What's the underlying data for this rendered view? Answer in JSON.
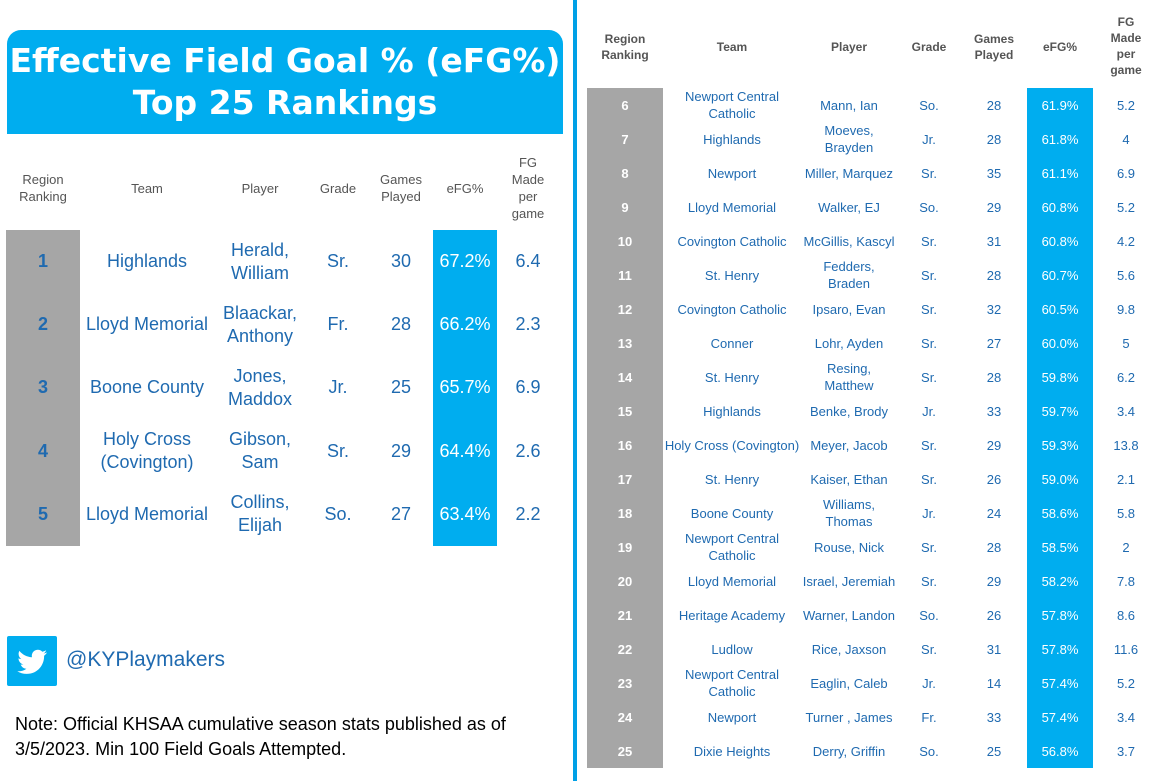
{
  "title": {
    "line1": "Effective Field Goal % (eFG%)",
    "line2": "Top 25 Rankings"
  },
  "headers": {
    "rank": "Region Ranking",
    "team": "Team",
    "player": "Player",
    "grade": "Grade",
    "games": "Games Played",
    "efg": "eFG%",
    "fgm": "FG Made per game"
  },
  "top5": [
    {
      "rank": "1",
      "team": "Highlands",
      "player": "Herald, William",
      "grade": "Sr.",
      "games": "30",
      "efg": "67.2%",
      "fgm": "6.4"
    },
    {
      "rank": "2",
      "team": "Lloyd Memorial",
      "player": "Blaackar, Anthony",
      "grade": "Fr.",
      "games": "28",
      "efg": "66.2%",
      "fgm": "2.3"
    },
    {
      "rank": "3",
      "team": "Boone County",
      "player": "Jones, Maddox",
      "grade": "Jr.",
      "games": "25",
      "efg": "65.7%",
      "fgm": "6.9"
    },
    {
      "rank": "4",
      "team": "Holy Cross (Covington)",
      "player": "Gibson, Sam",
      "grade": "Sr.",
      "games": "29",
      "efg": "64.4%",
      "fgm": "2.6"
    },
    {
      "rank": "5",
      "team": "Lloyd Memorial",
      "player": "Collins, Elijah",
      "grade": "So.",
      "games": "27",
      "efg": "63.4%",
      "fgm": "2.2"
    }
  ],
  "rest": [
    {
      "rank": "6",
      "team": "Newport Central Catholic",
      "player": "Mann, Ian",
      "grade": "So.",
      "games": "28",
      "efg": "61.9%",
      "fgm": "5.2"
    },
    {
      "rank": "7",
      "team": "Highlands",
      "player": "Moeves, Brayden",
      "grade": "Jr.",
      "games": "28",
      "efg": "61.8%",
      "fgm": "4"
    },
    {
      "rank": "8",
      "team": "Newport",
      "player": "Miller, Marquez",
      "grade": "Sr.",
      "games": "35",
      "efg": "61.1%",
      "fgm": "6.9"
    },
    {
      "rank": "9",
      "team": "Lloyd Memorial",
      "player": "Walker, EJ",
      "grade": "So.",
      "games": "29",
      "efg": "60.8%",
      "fgm": "5.2"
    },
    {
      "rank": "10",
      "team": "Covington Catholic",
      "player": "McGillis, Kascyl",
      "grade": "Sr.",
      "games": "31",
      "efg": "60.8%",
      "fgm": "4.2"
    },
    {
      "rank": "11",
      "team": "St. Henry",
      "player": "Fedders, Braden",
      "grade": "Sr.",
      "games": "28",
      "efg": "60.7%",
      "fgm": "5.6"
    },
    {
      "rank": "12",
      "team": "Covington Catholic",
      "player": "Ipsaro, Evan",
      "grade": "Sr.",
      "games": "32",
      "efg": "60.5%",
      "fgm": "9.8"
    },
    {
      "rank": "13",
      "team": "Conner",
      "player": "Lohr, Ayden",
      "grade": "Sr.",
      "games": "27",
      "efg": "60.0%",
      "fgm": "5"
    },
    {
      "rank": "14",
      "team": "St. Henry",
      "player": "Resing, Matthew",
      "grade": "Sr.",
      "games": "28",
      "efg": "59.8%",
      "fgm": "6.2"
    },
    {
      "rank": "15",
      "team": "Highlands",
      "player": "Benke, Brody",
      "grade": "Jr.",
      "games": "33",
      "efg": "59.7%",
      "fgm": "3.4"
    },
    {
      "rank": "16",
      "team": "Holy Cross (Covington)",
      "player": "Meyer, Jacob",
      "grade": "Sr.",
      "games": "29",
      "efg": "59.3%",
      "fgm": "13.8"
    },
    {
      "rank": "17",
      "team": "St. Henry",
      "player": "Kaiser, Ethan",
      "grade": "Sr.",
      "games": "26",
      "efg": "59.0%",
      "fgm": "2.1"
    },
    {
      "rank": "18",
      "team": "Boone County",
      "player": "Williams, Thomas",
      "grade": "Jr.",
      "games": "24",
      "efg": "58.6%",
      "fgm": "5.8"
    },
    {
      "rank": "19",
      "team": "Newport Central Catholic",
      "player": "Rouse, Nick",
      "grade": "Sr.",
      "games": "28",
      "efg": "58.5%",
      "fgm": "2"
    },
    {
      "rank": "20",
      "team": "Lloyd Memorial",
      "player": "Israel, Jeremiah",
      "grade": "Sr.",
      "games": "29",
      "efg": "58.2%",
      "fgm": "7.8"
    },
    {
      "rank": "21",
      "team": "Heritage Academy",
      "player": "Warner, Landon",
      "grade": "So.",
      "games": "26",
      "efg": "57.8%",
      "fgm": "8.6"
    },
    {
      "rank": "22",
      "team": "Ludlow",
      "player": "Rice, Jaxson",
      "grade": "Sr.",
      "games": "31",
      "efg": "57.8%",
      "fgm": "11.6"
    },
    {
      "rank": "23",
      "team": "Newport Central Catholic",
      "player": "Eaglin, Caleb",
      "grade": "Jr.",
      "games": "14",
      "efg": "57.4%",
      "fgm": "5.2"
    },
    {
      "rank": "24",
      "team": "Newport",
      "player": "Turner , James",
      "grade": "Fr.",
      "games": "33",
      "efg": "57.4%",
      "fgm": "3.4"
    },
    {
      "rank": "25",
      "team": "Dixie Heights",
      "player": "Derry, Griffin",
      "grade": "So.",
      "games": "25",
      "efg": "56.8%",
      "fgm": "3.7"
    }
  ],
  "social": {
    "handle": "@KYPlaymakers",
    "icon": "twitter-bird-icon"
  },
  "note": "Note: Official KHSAA cumulative season stats published as of 3/5/2023. Min 100 Field Goals Attempted.",
  "colors": {
    "accent": "#00adef",
    "rank_bg": "#a6a6a6",
    "text": "#1f6ab0"
  }
}
